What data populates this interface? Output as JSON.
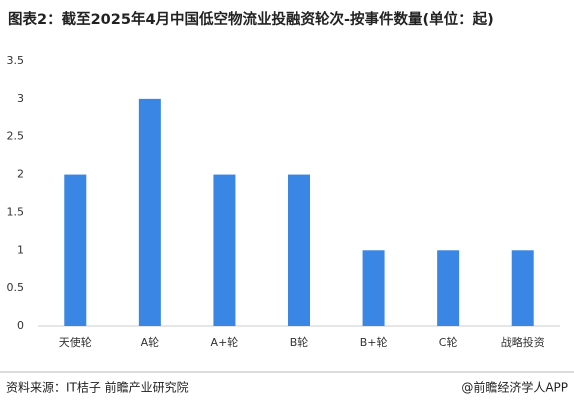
{
  "chart_data": {
    "type": "bar",
    "title": "图表2：截至2025年4月中国低空物流业投融资轮次-按事件数量(单位：起)",
    "categories": [
      "天使轮",
      "A轮",
      "A+轮",
      "B轮",
      "B+轮",
      "C轮",
      "战略投资"
    ],
    "values": [
      2,
      3,
      2,
      2,
      1,
      1,
      1
    ],
    "color": "#3a86e5",
    "ylim": [
      0,
      3.5
    ],
    "yticks": [
      0,
      0.5,
      1,
      1.5,
      2,
      2.5,
      3,
      3.5
    ],
    "grid": false,
    "source": "资料来源：IT桔子 前瞻产业研究院",
    "credit": "@前瞻经济学人APP"
  }
}
